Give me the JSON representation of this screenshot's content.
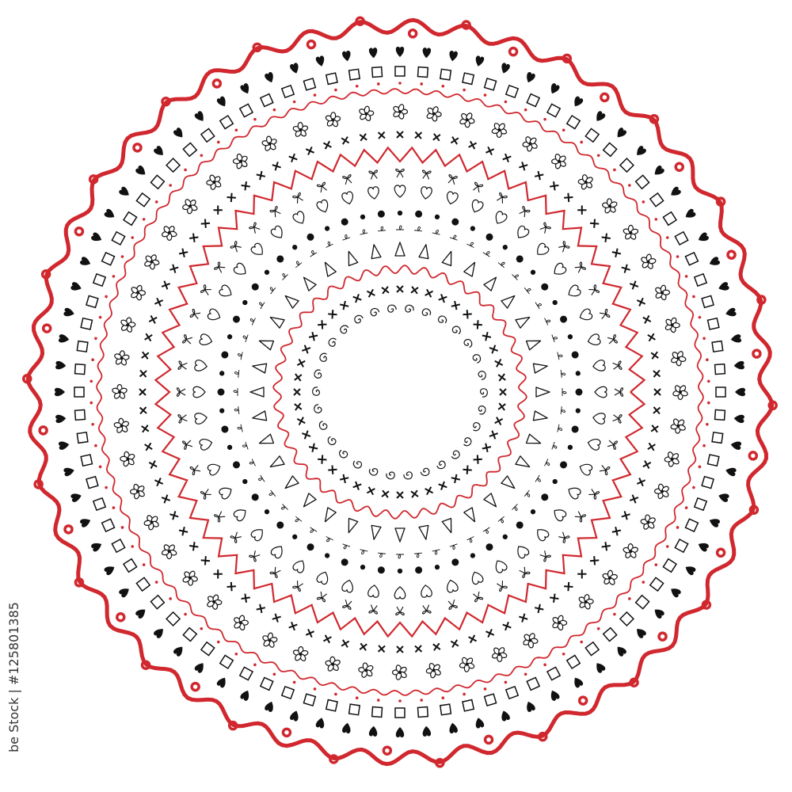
{
  "colors": {
    "red": "#d0282e",
    "black": "#111111",
    "background": "#ffffff"
  },
  "credit": "be Stock | #125801385",
  "rings": [
    {
      "motif": "swirl-wave",
      "color": "red",
      "count": 44
    },
    {
      "motif": "heart-filled",
      "color": "black",
      "count": 80
    },
    {
      "motif": "square-outline",
      "color": "black",
      "count": 88
    },
    {
      "motif": "dotted-wave",
      "color": "red",
      "count": 90
    },
    {
      "motif": "flower",
      "color": "black",
      "count": 52
    },
    {
      "motif": "cross",
      "color": "black",
      "count": 88
    },
    {
      "motif": "zigzag",
      "color": "red",
      "count": 64
    },
    {
      "motif": "bow",
      "color": "black",
      "count": 52
    },
    {
      "motif": "heart-outline",
      "color": "black",
      "count": 48
    },
    {
      "motif": "dot",
      "color": "black",
      "count": 60
    },
    {
      "motif": "leaf-vine",
      "color": "black",
      "count": 56
    },
    {
      "motif": "triangle-outline",
      "color": "black",
      "count": 36
    },
    {
      "motif": "wave",
      "color": "red",
      "count": 40
    },
    {
      "motif": "cross",
      "color": "black",
      "count": 44
    },
    {
      "motif": "spiral",
      "color": "black",
      "count": 30
    }
  ]
}
